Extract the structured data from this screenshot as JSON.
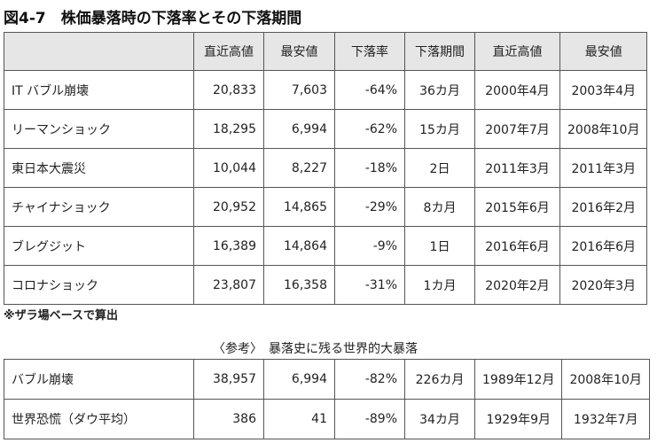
{
  "title": "図4-7　株価暴落時の下落率とその下落期間",
  "main_table": {
    "headers": [
      "",
      "直近高値",
      "最安値",
      "下落率",
      "下落期間",
      "直近高値",
      "最安値"
    ],
    "rows": [
      [
        "IT バブル崩壊",
        "20,833",
        "7,603",
        "-64%",
        "36カ月",
        "2000年4月",
        "2003年4月"
      ],
      [
        "リーマンショック",
        "18,295",
        "6,994",
        "-62%",
        "15カ月",
        "2007年7月",
        "2008年10月"
      ],
      [
        "東日本大震災",
        "10,044",
        "8,227",
        "-18%",
        "2日",
        "2011年3月",
        "2011年3月"
      ],
      [
        "チャイナショック",
        "20,952",
        "14,865",
        "-29%",
        "8カ月",
        "2015年6月",
        "2016年2月"
      ],
      [
        "ブレグジット",
        "16,389",
        "14,864",
        "-9%",
        "1日",
        "2016年6月",
        "2016年6月"
      ],
      [
        "コロナショック",
        "23,807",
        "16,358",
        "-31%",
        "1カ月",
        "2020年2月",
        "2020年3月"
      ]
    ]
  },
  "note": "※ザラ場ベースで算出",
  "reference": {
    "title": "〈参考〉　暴落史に残る世界的大暴落",
    "rows": [
      [
        "バブル崩壊",
        "38,957",
        "6,994",
        "-82%",
        "226カ月",
        "1989年12月",
        "2008年10月"
      ],
      [
        "世界恐慌（ダウ平均）",
        "386",
        "41",
        "-89%",
        "34カ月",
        "1929年9月",
        "1932年7月"
      ]
    ]
  }
}
